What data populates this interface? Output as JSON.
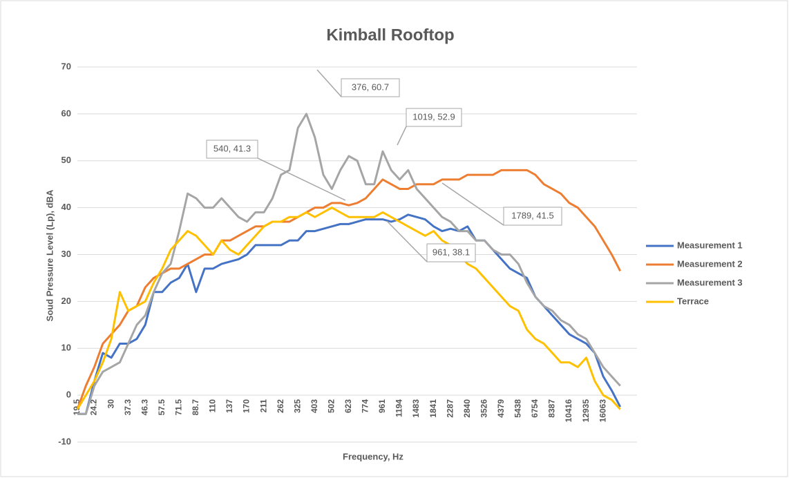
{
  "chart_data": {
    "type": "line",
    "title": "Kimball  Rooftop",
    "x_label": "Frequency, Hz",
    "y_label": "Soud Pressure Level (Lp), dBA",
    "categories": [
      19.5,
      null,
      24.2,
      null,
      30,
      null,
      37.3,
      null,
      46.3,
      null,
      57.5,
      null,
      71.5,
      null,
      88.7,
      null,
      110,
      null,
      137,
      null,
      170,
      null,
      211,
      null,
      262,
      null,
      325,
      null,
      403,
      null,
      502,
      null,
      623,
      null,
      774,
      null,
      961,
      null,
      1194,
      null,
      1483,
      null,
      1841,
      null,
      2287,
      null,
      2840,
      null,
      3526,
      null,
      4379,
      null,
      5438,
      null,
      6754,
      null,
      8387,
      null,
      10416,
      null,
      12935,
      null,
      16063,
      null,
      null
    ],
    "series": [
      {
        "name": "Measurement 1",
        "color": "#4472c4",
        "values": [
          -4,
          -4,
          3,
          9,
          8,
          11,
          11,
          12,
          15,
          22,
          22,
          24,
          25,
          28,
          22,
          27,
          27,
          28,
          28.5,
          29,
          30,
          32,
          32,
          32,
          32,
          33,
          33,
          35,
          35,
          35.5,
          36,
          36.5,
          36.5,
          37,
          37.5,
          37.5,
          37.5,
          37,
          37.5,
          38.5,
          38,
          37.5,
          36,
          35,
          35.5,
          35,
          36,
          33,
          33,
          31,
          29,
          27,
          26,
          25,
          21,
          19,
          17,
          15,
          13,
          12,
          11,
          9,
          4,
          1,
          -2.5
        ]
      },
      {
        "name": "Measurement 2",
        "color": "#ed7d31",
        "values": [
          -3,
          2,
          6,
          11,
          13,
          15,
          18,
          19,
          23,
          25,
          26,
          27,
          27,
          28,
          29,
          30,
          30,
          33,
          33,
          34,
          35,
          36,
          36,
          37,
          37,
          37,
          38,
          39,
          40,
          40,
          41,
          41,
          40.5,
          41,
          42,
          44,
          46,
          45,
          44,
          44,
          45,
          45,
          45,
          46,
          46,
          46,
          47,
          47,
          47,
          47,
          48,
          48,
          48,
          48,
          47,
          45,
          44,
          43,
          41,
          40,
          38,
          36,
          33,
          30,
          26.5
        ]
      },
      {
        "name": "Measurement 3",
        "color": "#a5a5a5",
        "values": [
          -4,
          -4,
          2,
          5,
          6,
          7,
          11,
          15,
          17,
          22,
          26,
          28,
          35,
          43,
          42,
          40,
          40,
          42,
          40,
          38,
          37,
          39,
          39,
          42,
          47,
          48,
          57,
          60,
          55,
          47,
          44,
          48,
          51,
          50,
          45,
          45,
          52,
          48,
          46,
          48,
          44,
          42,
          40,
          38,
          37,
          35,
          35,
          33,
          33,
          31,
          30,
          30,
          28,
          24,
          21,
          19,
          18,
          16,
          15,
          13,
          12,
          9,
          6,
          4,
          2
        ]
      },
      {
        "name": "Terrace",
        "color": "#ffc000",
        "values": [
          -3,
          0,
          3,
          7,
          12,
          22,
          18,
          19,
          20,
          24,
          27,
          31,
          33,
          35,
          34,
          32,
          30,
          33,
          31,
          30,
          32,
          34,
          36,
          37,
          37,
          38,
          38,
          39,
          38,
          39,
          40,
          39,
          38,
          38,
          38,
          38,
          39,
          38,
          37,
          36,
          35,
          34,
          35,
          33,
          32,
          30,
          28,
          27,
          25,
          23,
          21,
          19,
          18,
          14,
          12,
          11,
          9,
          7,
          7,
          6,
          8,
          3,
          0,
          -1,
          -3
        ]
      }
    ],
    "annotations": [
      "376, 60.7",
      "1019, 52.9",
      "540, 41.3",
      "1789, 41.5",
      "961, 38.1"
    ],
    "ylim": [
      -10,
      70
    ],
    "yticks": [
      -10,
      0,
      10,
      20,
      30,
      40,
      50,
      60,
      70
    ],
    "grid": true,
    "legend": "right"
  }
}
